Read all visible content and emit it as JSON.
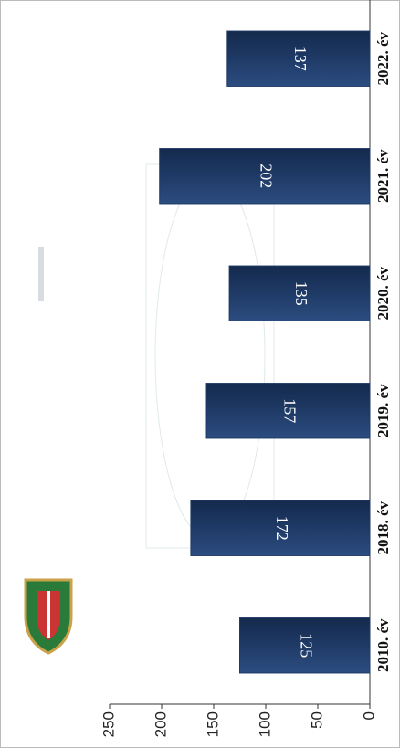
{
  "chart_data": {
    "type": "bar",
    "categories": [
      "2010. év",
      "2018. év",
      "2019. év",
      "2020. év",
      "2021. év",
      "2022. év"
    ],
    "values": [
      125,
      172,
      157,
      135,
      202,
      137
    ],
    "color": "#1f3a66",
    "ylim": [
      0,
      250
    ],
    "yticks": [
      0,
      50,
      100,
      150,
      200,
      250
    ]
  }
}
